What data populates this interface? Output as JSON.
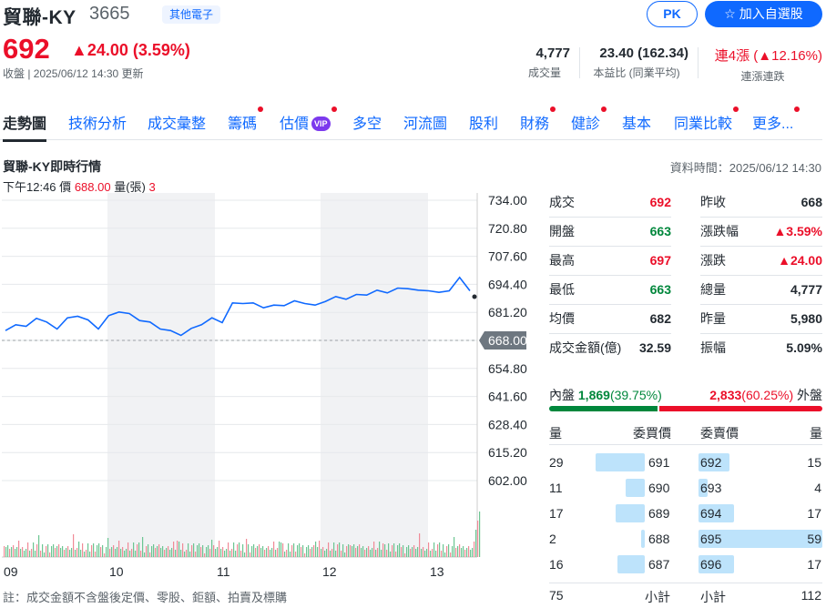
{
  "header": {
    "name": "貿聯-KY",
    "code": "3665",
    "industry": "其他電子",
    "pk_label": "PK",
    "add_label": "加入自選股",
    "price": "692",
    "change": "24.00 (3.59%)",
    "status_line": "收盤 | 2025/06/12 14:30 更新",
    "stats": [
      {
        "value": "4,777",
        "label": "成交量"
      },
      {
        "value": "23.40 (162.34)",
        "label": "本益比 (同業平均)"
      },
      {
        "value": "連4漲 (▲12.16%)",
        "label": "連漲連跌"
      }
    ]
  },
  "tabs": [
    {
      "label": "走勢圖"
    },
    {
      "label": "技術分析"
    },
    {
      "label": "成交彙整"
    },
    {
      "label": "籌碼"
    },
    {
      "label": "估價"
    },
    {
      "label": "多空"
    },
    {
      "label": "河流圖"
    },
    {
      "label": "股利"
    },
    {
      "label": "財務"
    },
    {
      "label": "健診"
    },
    {
      "label": "基本"
    },
    {
      "label": "同業比較"
    },
    {
      "label": "更多..."
    }
  ],
  "vip_label": "VIP",
  "section": {
    "title": "貿聯-KY即時行情",
    "data_time": "資料時間：2025/06/12 14:30"
  },
  "tooltip": {
    "time": "下午12:46",
    "price_label": "價",
    "price": "688.00",
    "volume_label": "量(張)",
    "volume": "3"
  },
  "colors": {
    "up": "#eb0f29",
    "down": "#00873c",
    "line": "#0f69ff",
    "accent": "#0f69ff"
  },
  "chart_data": {
    "type": "line",
    "y_ticks": [
      "734.00",
      "720.80",
      "707.60",
      "694.40",
      "681.20",
      "668.00",
      "654.80",
      "641.60",
      "628.40",
      "615.20",
      "602.00"
    ],
    "x_ticks": [
      "09",
      "10",
      "11",
      "12",
      "13"
    ],
    "ylim": [
      602,
      734
    ],
    "reference_price": "668.00",
    "price_series": [
      672,
      676,
      674,
      679,
      676,
      674,
      678,
      680,
      677,
      674,
      679,
      682,
      680,
      678,
      676,
      674,
      672,
      671,
      673,
      676,
      678,
      677,
      685,
      686,
      685,
      684,
      684,
      685,
      686,
      686,
      684,
      687,
      688,
      688,
      689,
      690,
      691,
      691,
      692,
      693,
      691,
      692,
      690,
      692,
      697,
      692
    ]
  },
  "quote_left": [
    {
      "label": "成交",
      "value": "692",
      "color": "red"
    },
    {
      "label": "開盤",
      "value": "663",
      "color": "green"
    },
    {
      "label": "最高",
      "value": "697",
      "color": "red"
    },
    {
      "label": "最低",
      "value": "663",
      "color": "green"
    },
    {
      "label": "均價",
      "value": "682",
      "color": ""
    },
    {
      "label": "成交金額(億)",
      "value": "32.59",
      "color": ""
    }
  ],
  "quote_right": [
    {
      "label": "昨收",
      "value": "668",
      "color": ""
    },
    {
      "label": "漲跌幅",
      "value": "▲3.59%",
      "color": "red"
    },
    {
      "label": "漲跌",
      "value": "▲24.00",
      "color": "red"
    },
    {
      "label": "總量",
      "value": "4,777",
      "color": ""
    },
    {
      "label": "昨量",
      "value": "5,980",
      "color": ""
    },
    {
      "label": "振幅",
      "value": "5.09%",
      "color": ""
    }
  ],
  "inout": {
    "inner_label": "內盤",
    "inner_value": "1,869",
    "inner_pct": "(39.75%)",
    "inner_ratio": 0.3975,
    "outer_value": "2,833",
    "outer_pct": "(60.25%)",
    "outer_label": "外盤"
  },
  "orderbook": {
    "headers": [
      "量",
      "委買價",
      "委賣價",
      "量"
    ],
    "bids": [
      {
        "qty": "29",
        "price": "691",
        "ratio": 0.49
      },
      {
        "qty": "11",
        "price": "690",
        "ratio": 0.19
      },
      {
        "qty": "17",
        "price": "689",
        "ratio": 0.29
      },
      {
        "qty": "2",
        "price": "688",
        "ratio": 0.03
      },
      {
        "qty": "16",
        "price": "687",
        "ratio": 0.27
      }
    ],
    "asks": [
      {
        "price": "692",
        "qty": "15",
        "ratio": 0.25
      },
      {
        "price": "693",
        "qty": "4",
        "ratio": 0.07
      },
      {
        "price": "694",
        "qty": "17",
        "ratio": 0.29
      },
      {
        "price": "695",
        "qty": "59",
        "ratio": 1.0
      },
      {
        "price": "696",
        "qty": "17",
        "ratio": 0.29
      }
    ],
    "bid_total": "75",
    "subtotal_label": "小計",
    "ask_total": "112"
  },
  "note": "註：成交金額不含盤後定價、零股、鉅額、拍賣及標購"
}
